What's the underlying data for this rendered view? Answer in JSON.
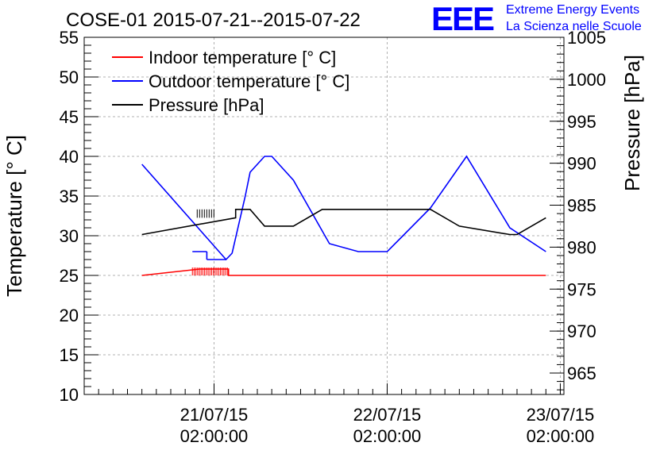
{
  "chart_data": {
    "type": "line",
    "title": "COSE-01 2015-07-21--2015-07-22",
    "logo": {
      "text": "EEE",
      "line1": "Extreme Energy Events",
      "line2": "La Scienza nelle Scuole",
      "color": "#0000ff"
    },
    "ylabel": "Temperature [° C]",
    "y2label": "Pressure [hPa]",
    "ylim": [
      10,
      55
    ],
    "y2ticks": [
      965,
      970,
      975,
      980,
      985,
      990,
      995,
      1000,
      1005
    ],
    "y2range_note": "right axis 965 at bottom-ish, 1005 at top",
    "xlim": [
      "2015-07-20T08:00",
      "2015-07-23T02:30"
    ],
    "xticks": [
      {
        "date": "21/07/15",
        "time": "02:00:00"
      },
      {
        "date": "22/07/15",
        "time": "02:00:00"
      },
      {
        "date": "23/07/15",
        "time": "02:00:00"
      }
    ],
    "grid": true,
    "legend_position": "top-left",
    "yticks": [
      "10",
      "15",
      "20",
      "25",
      "30",
      "35",
      "40",
      "45",
      "50",
      "55"
    ],
    "y2tick_labels": [
      "965",
      "970",
      "975",
      "980",
      "985",
      "990",
      "995",
      "1000",
      "1005"
    ],
    "series": [
      {
        "name": "Indoor temperature [° C]",
        "color": "#ff0000",
        "axis": "left",
        "points": [
          [
            "2015-07-20T16:00",
            25.0
          ],
          [
            "2015-07-21T00:00",
            25.8
          ],
          [
            "2015-07-21T04:00",
            25.8
          ],
          [
            "2015-07-21T04:00",
            25.0
          ],
          [
            "2015-07-23T00:00",
            25.0
          ]
        ]
      },
      {
        "name": "Outdoor temperature [° C]",
        "color": "#0000ff",
        "axis": "left",
        "points": [
          [
            "2015-07-20T16:00",
            39.0
          ],
          [
            "2015-07-21T03:40",
            27.0
          ],
          [
            "2015-07-21T04:30",
            27.8
          ],
          [
            "2015-07-21T06:20",
            35.0
          ],
          [
            "2015-07-21T07:00",
            38.0
          ],
          [
            "2015-07-21T09:00",
            40.0
          ],
          [
            "2015-07-21T10:00",
            40.0
          ],
          [
            "2015-07-21T13:00",
            37.0
          ],
          [
            "2015-07-21T18:00",
            29.0
          ],
          [
            "2015-07-21T22:00",
            28.0
          ],
          [
            "2015-07-22T02:00",
            28.0
          ],
          [
            "2015-07-22T08:00",
            33.5
          ],
          [
            "2015-07-22T13:00",
            40.0
          ],
          [
            "2015-07-22T19:00",
            31.0
          ],
          [
            "2015-07-23T00:00",
            28.0
          ]
        ]
      },
      {
        "name": "Pressure [hPa]",
        "color": "#000000",
        "axis": "right",
        "points": [
          [
            "2015-07-20T16:00",
            981.5
          ],
          [
            "2015-07-21T05:00",
            983.5
          ],
          [
            "2015-07-21T05:00",
            984.5
          ],
          [
            "2015-07-21T07:00",
            984.5
          ],
          [
            "2015-07-21T08:00",
            983.5
          ],
          [
            "2015-07-21T09:00",
            982.5
          ],
          [
            "2015-07-21T13:00",
            982.5
          ],
          [
            "2015-07-21T17:00",
            984.5
          ],
          [
            "2015-07-22T08:00",
            984.5
          ],
          [
            "2015-07-22T12:00",
            982.5
          ],
          [
            "2015-07-22T19:00",
            981.5
          ],
          [
            "2015-07-22T20:00",
            981.5
          ],
          [
            "2015-07-23T00:00",
            983.5
          ]
        ]
      }
    ],
    "noisy_segments": {
      "indoor": {
        "from": "2015-07-20T23:00",
        "to": "2015-07-21T04:00",
        "low": 25.0,
        "high": 26.0
      },
      "outdoor_early": {
        "from": "2015-07-20T23:00",
        "to": "2015-07-21T01:00",
        "level": 28.0
      }
    }
  }
}
